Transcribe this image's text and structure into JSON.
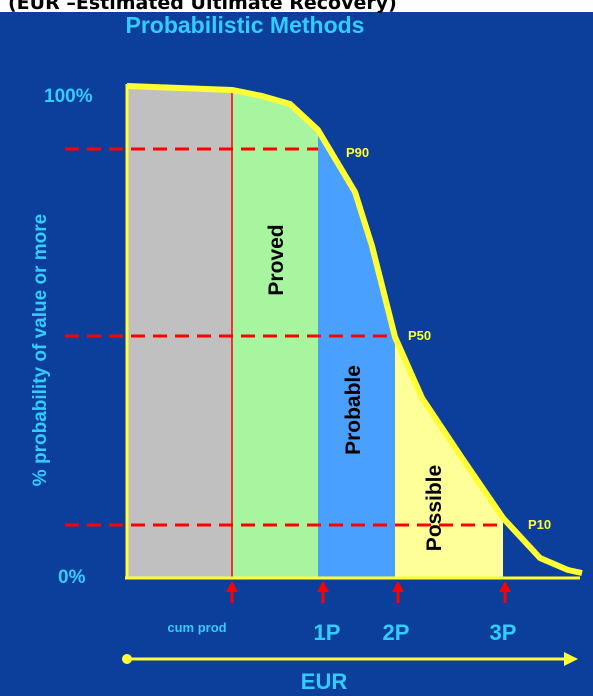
{
  "header": {
    "text": "(EUR –Estimated Ultimate Recovery)"
  },
  "title": "Probabilistic Methods",
  "y_axis": {
    "label": "% probability of value or more",
    "tick_top": "100%",
    "tick_bottom": "0%"
  },
  "curve_labels": {
    "p90": "P90",
    "p50": "P50",
    "p10": "P10"
  },
  "regions": {
    "proved": "Proved",
    "probable": "Probable",
    "possible": "Possible"
  },
  "x_markers": {
    "cum_prod": "cum prod",
    "p1": "1P",
    "p2": "2P",
    "p3": "3P"
  },
  "x_axis": {
    "label": "EUR"
  },
  "colors": {
    "background": "#0b3f9b",
    "curve": "#ffff33",
    "gray_region": "#c0c0c0",
    "proved": "#a7f59e",
    "probable": "#4aa0ff",
    "possible": "#ffff99",
    "dashed": "#ff0000",
    "label_cyan": "#33ccff",
    "arrow_red": "#ff0000"
  }
}
